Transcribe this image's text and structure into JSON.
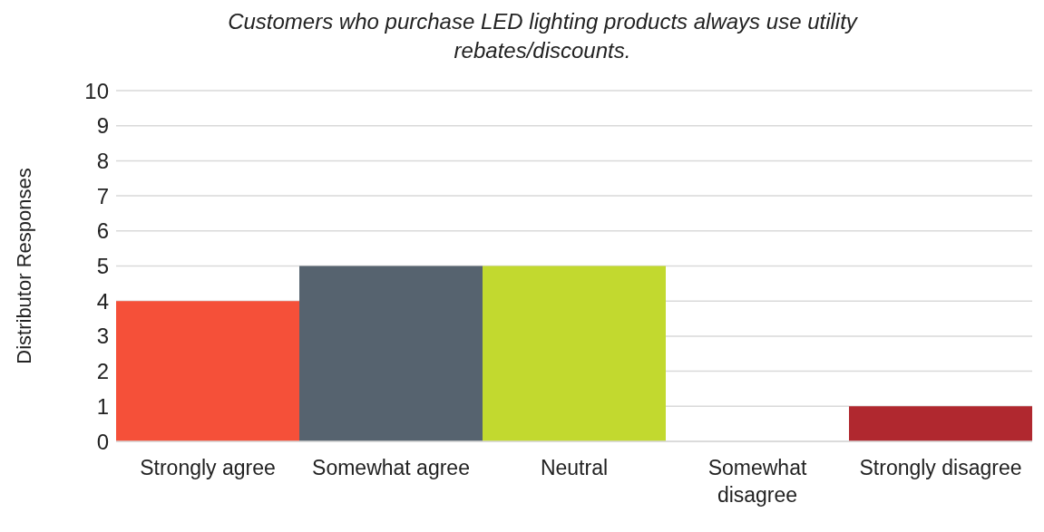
{
  "chart_data": {
    "type": "bar",
    "title": "Customers who purchase LED lighting products always use utility rebates/discounts.",
    "ylabel": "Distributor Responses",
    "categories": [
      "Strongly agree",
      "Somewhat agree",
      "Neutral",
      "Somewhat disagree",
      "Strongly disagree"
    ],
    "values": [
      4,
      5,
      5,
      0,
      1
    ],
    "colors": [
      "#f55039",
      "#56636f",
      "#c2d92f",
      null,
      "#b0282f"
    ],
    "ylim": [
      0,
      10
    ],
    "yticks": [
      0,
      1,
      2,
      3,
      4,
      5,
      6,
      7,
      8,
      9,
      10
    ],
    "grid": "y"
  }
}
